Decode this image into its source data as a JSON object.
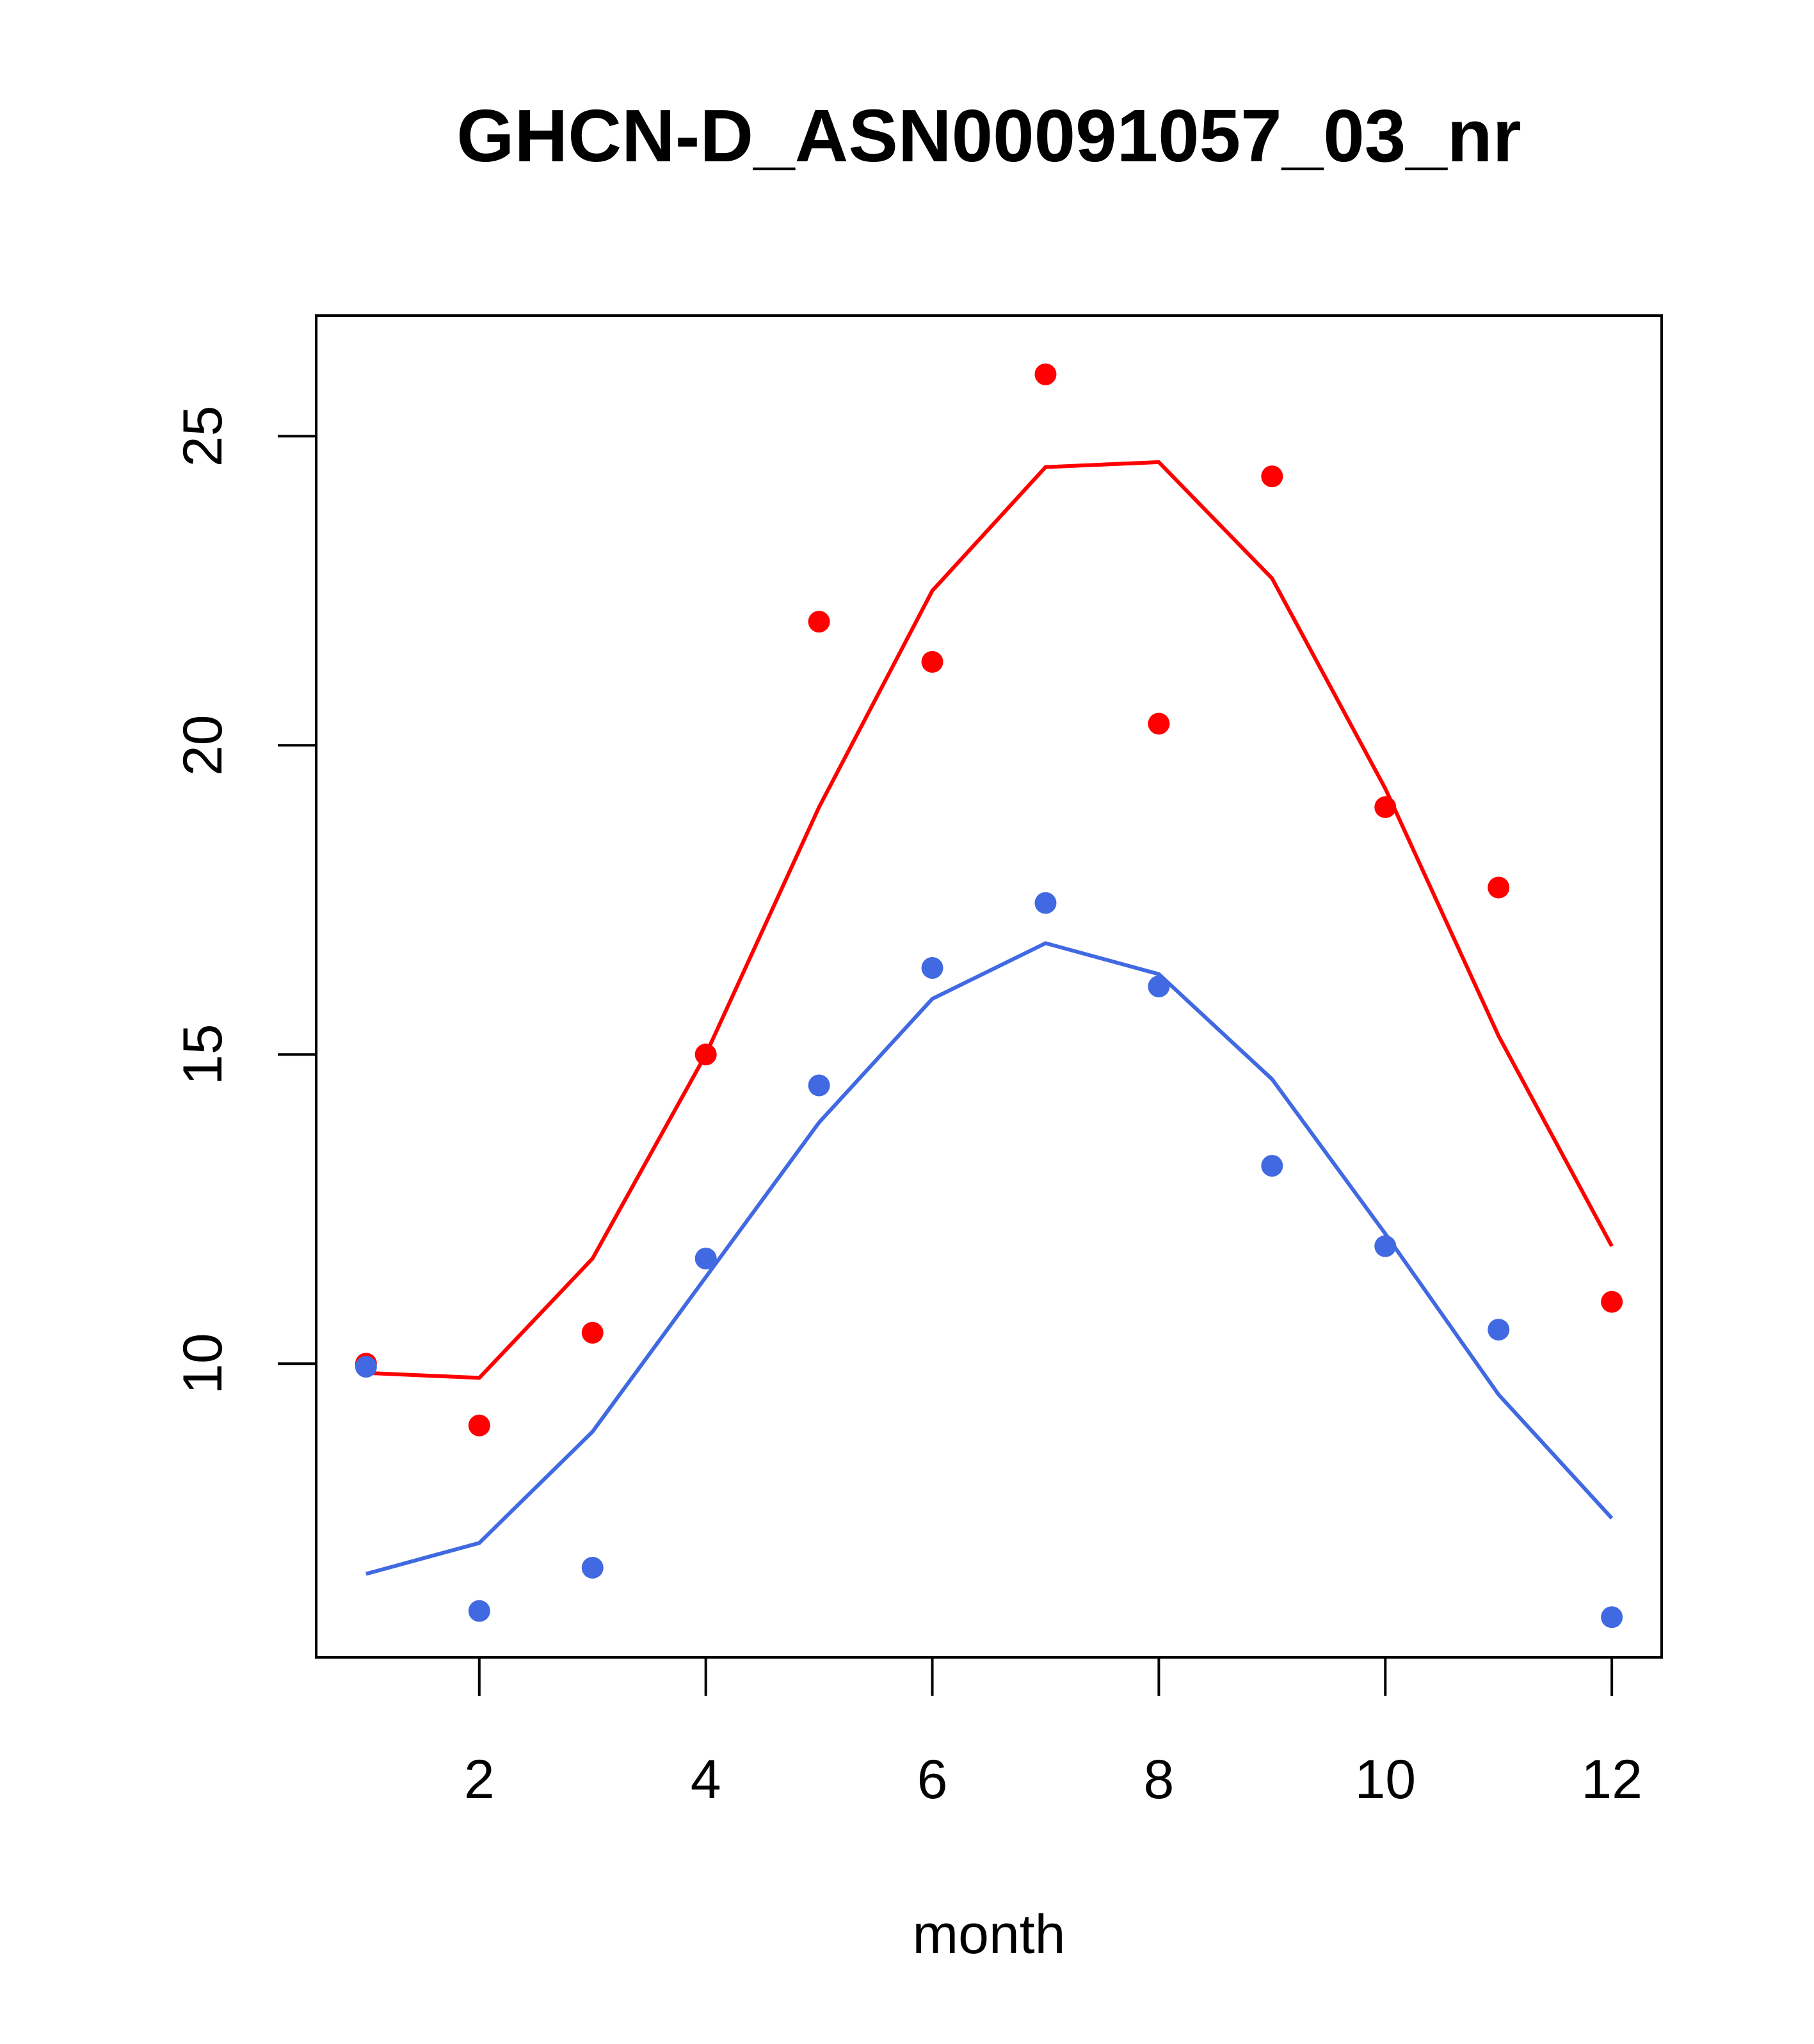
{
  "chart_data": {
    "type": "line",
    "title": "GHCN-D_ASN00091057_03_nr",
    "xlabel": "month",
    "ylabel": "",
    "xlim": [
      0.56,
      12.44
    ],
    "ylim": [
      5.25,
      26.95
    ],
    "x_ticks": [
      2,
      4,
      6,
      8,
      10,
      12
    ],
    "y_ticks": [
      10,
      15,
      20,
      25
    ],
    "grid": false,
    "legend": "none",
    "x": [
      1,
      2,
      3,
      4,
      5,
      6,
      7,
      8,
      9,
      10,
      11,
      12
    ],
    "series": [
      {
        "kind": "line",
        "color": "#ff0000",
        "values": [
          9.85,
          9.77,
          11.7,
          15.0,
          19.0,
          22.5,
          24.5,
          24.58,
          22.7,
          19.3,
          15.3,
          11.9
        ]
      },
      {
        "kind": "points",
        "color": "#ff0000",
        "values": [
          10.0,
          9.0,
          10.5,
          15.0,
          22.0,
          21.35,
          26.0,
          20.35,
          24.35,
          19.0,
          17.7,
          11.0
        ]
      },
      {
        "kind": "line",
        "color": "#4169e1",
        "values": [
          6.6,
          7.1,
          8.9,
          11.4,
          13.9,
          15.9,
          16.8,
          16.3,
          14.6,
          12.1,
          9.5,
          7.5
        ]
      },
      {
        "kind": "points",
        "color": "#4169e1",
        "values": [
          9.95,
          6.0,
          6.7,
          11.7,
          14.5,
          16.4,
          17.45,
          16.1,
          13.2,
          11.9,
          10.55,
          5.9
        ]
      }
    ]
  }
}
